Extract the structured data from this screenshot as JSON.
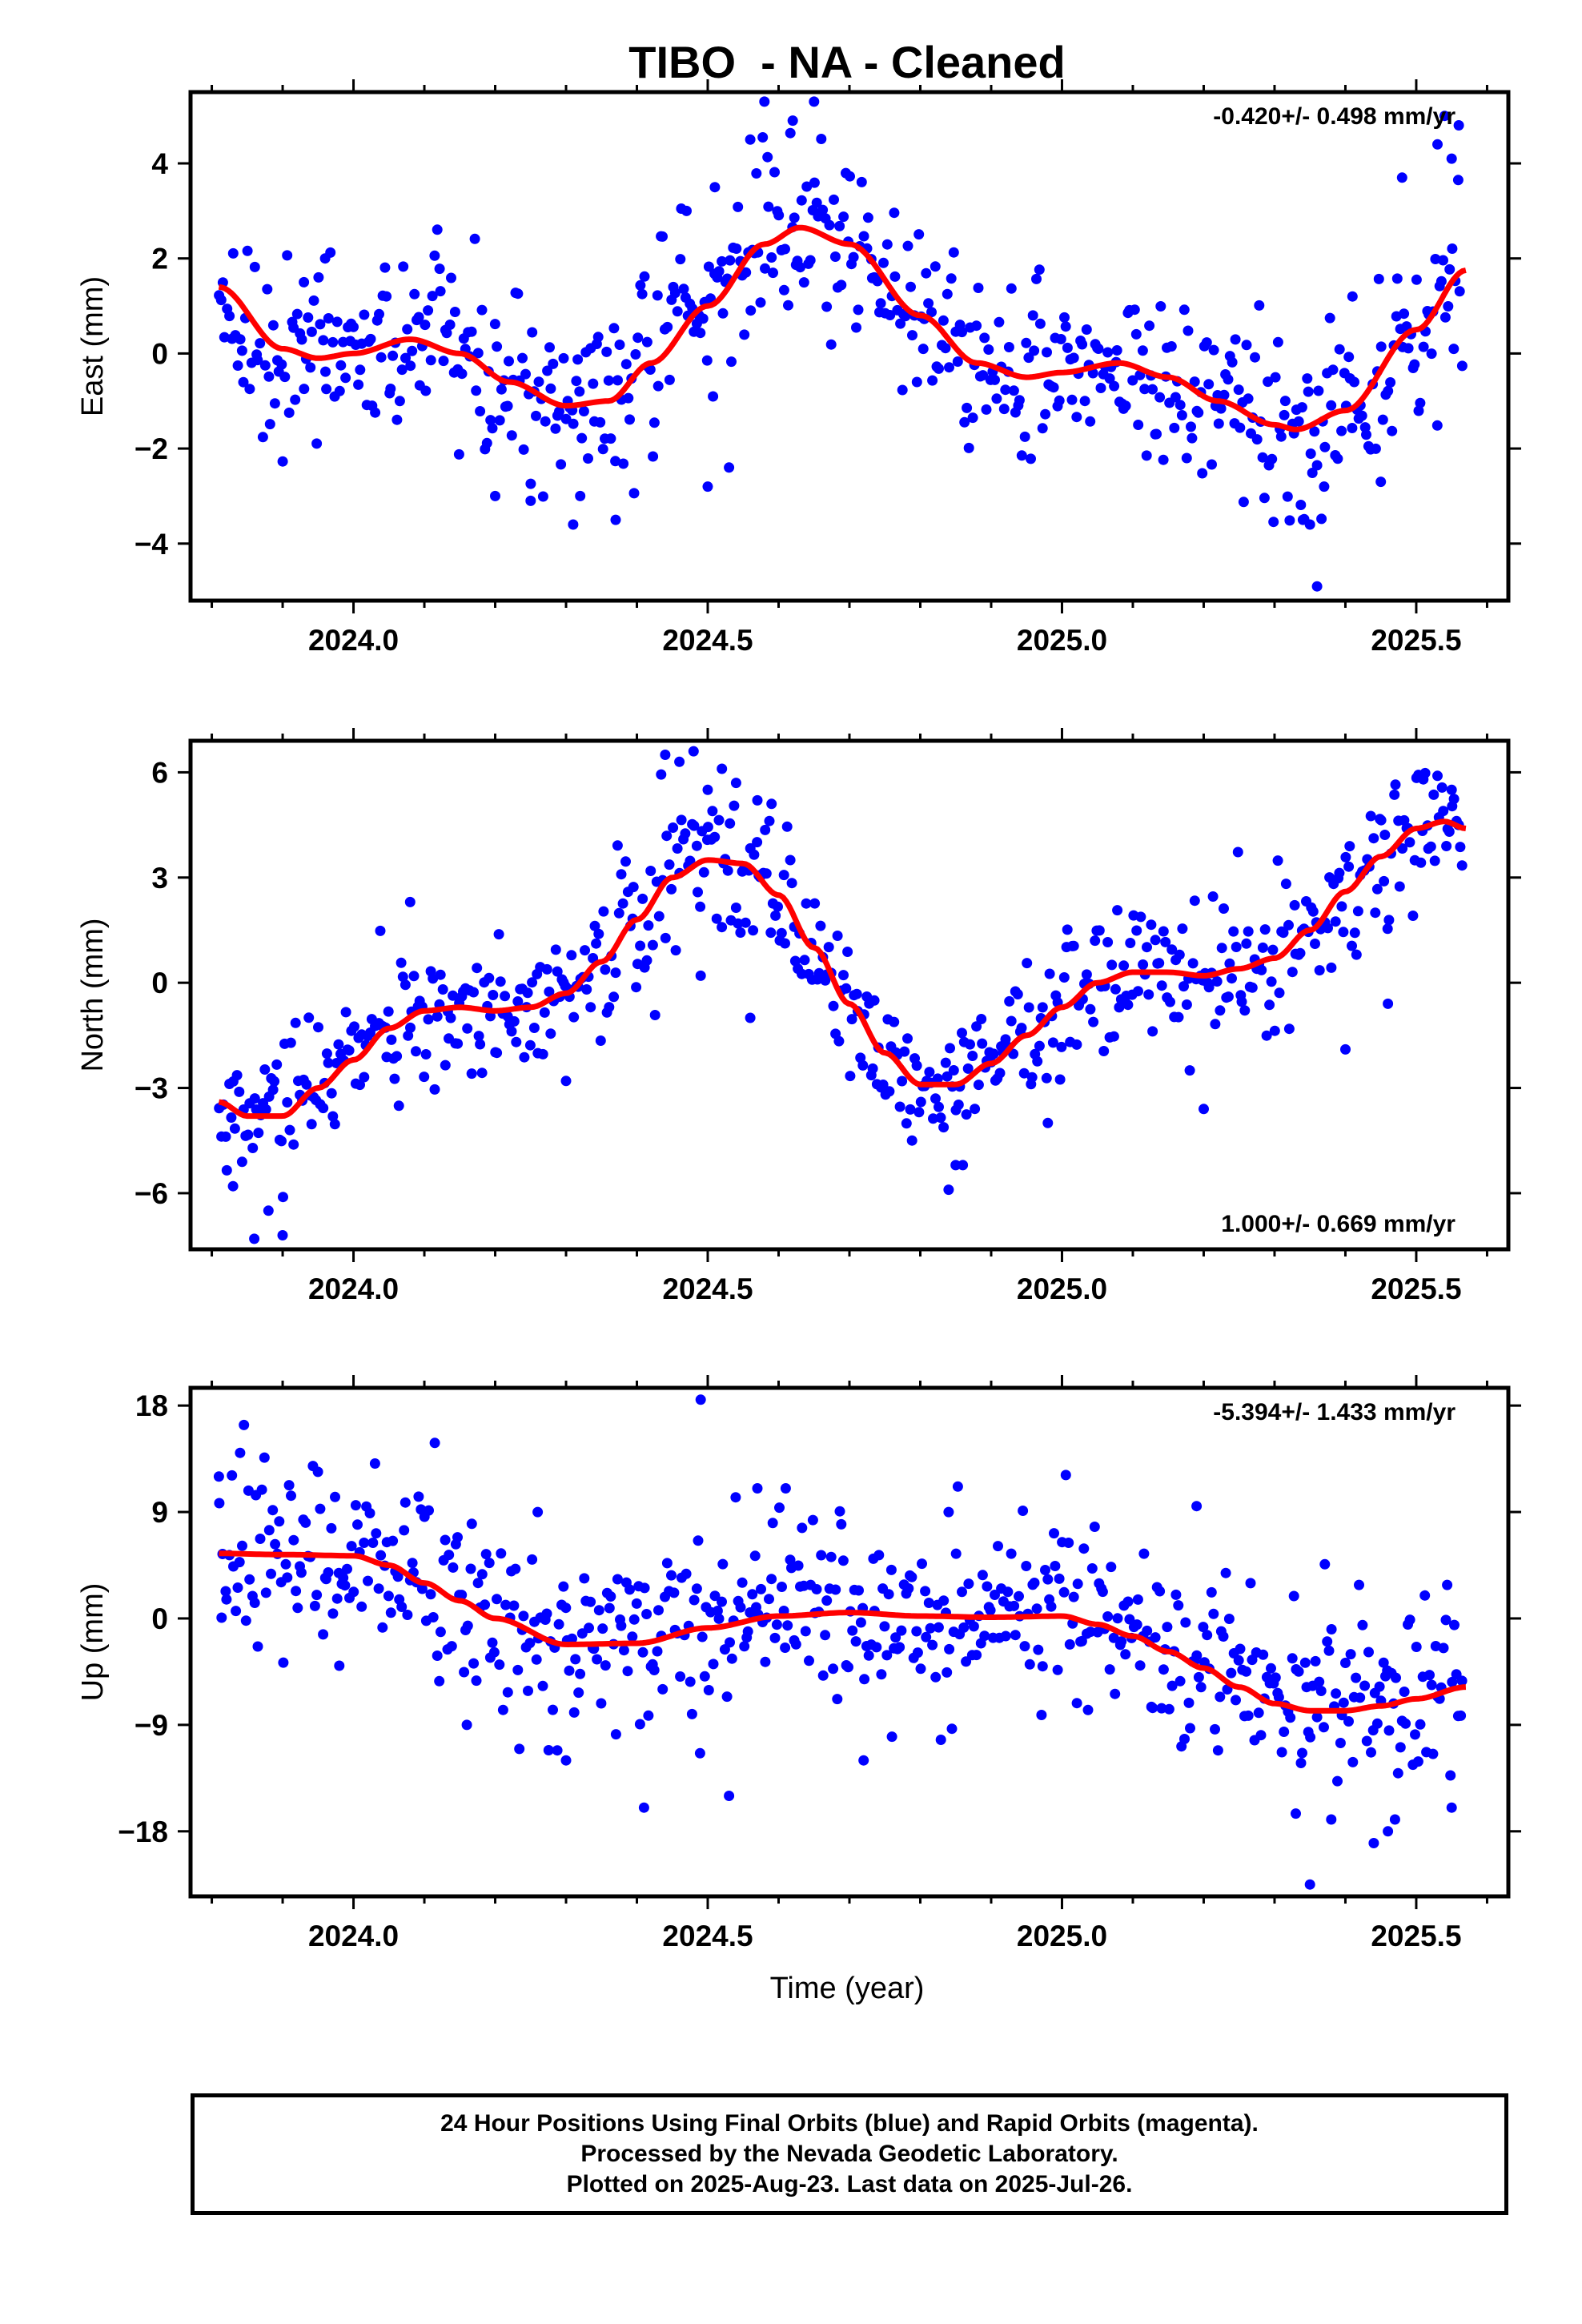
{
  "title": "TIBO  - NA - Cleaned",
  "colors": {
    "final_orbits": "#0000ff",
    "fit_line": "#ff0000",
    "frame": "#000000"
  },
  "xaxis": {
    "label": "Time (year)",
    "ticks": [
      "2024.0",
      "2024.5",
      "2025.0",
      "2025.5"
    ]
  },
  "footer": {
    "line1": "24 Hour Positions Using Final Orbits (blue) and Rapid Orbits (magenta).",
    "line2": "Processed by the Nevada Geodetic Laboratory.",
    "line3": "Plotted on 2025-Aug-23. Last data on 2025-Jul-26."
  },
  "chart_data": [
    {
      "type": "scatter",
      "title": "",
      "ylabel": "East (mm)",
      "rate": "-0.420+/- 0.498 mm/yr",
      "xlim": [
        2023.77,
        2025.63
      ],
      "ylim": [
        -5.2,
        5.5
      ],
      "yticks": [
        -4,
        -2,
        0,
        2,
        4
      ],
      "ytick_labels": [
        "−4",
        "−2",
        "0",
        "2",
        "4"
      ],
      "xticks": [
        2024.0,
        2024.5,
        2025.0,
        2025.5
      ],
      "fit": {
        "x": [
          2023.81,
          2023.9,
          2023.95,
          2024.0,
          2024.08,
          2024.15,
          2024.22,
          2024.3,
          2024.36,
          2024.42,
          2024.5,
          2024.58,
          2024.63,
          2024.7,
          2024.8,
          2024.88,
          2024.95,
          2025.0,
          2025.08,
          2025.15,
          2025.22,
          2025.3,
          2025.33,
          2025.4,
          2025.5,
          2025.57
        ],
        "y": [
          1.4,
          0.1,
          -0.1,
          0.0,
          0.3,
          0.0,
          -0.6,
          -1.1,
          -1.0,
          -0.2,
          1.0,
          2.3,
          2.65,
          2.3,
          0.8,
          -0.2,
          -0.5,
          -0.4,
          -0.2,
          -0.5,
          -1.0,
          -1.5,
          -1.6,
          -1.2,
          0.5,
          1.75
        ]
      },
      "outliers": {
        "x": [
          2024.58,
          2024.62,
          2024.65,
          2024.56,
          2024.47,
          2024.51,
          2025.35,
          2025.36,
          2025.34,
          2025.53,
          2025.54,
          2025.55,
          2025.56,
          2024.31,
          2024.32,
          2024.37,
          2024.2,
          2024.25,
          2024.5,
          2024.53,
          2023.96,
          2023.93,
          2025.37,
          2025.41,
          2025.45,
          2025.48
        ],
        "y": [
          5.3,
          4.9,
          5.3,
          4.5,
          3.0,
          3.5,
          -3.6,
          -4.9,
          -3.5,
          4.4,
          5.0,
          4.1,
          4.8,
          -3.6,
          -3.0,
          -3.5,
          -3.0,
          -3.1,
          -2.8,
          -2.4,
          2.0,
          1.5,
          -2.8,
          1.2,
          -2.7,
          3.7
        ]
      }
    },
    {
      "type": "scatter",
      "title": "",
      "ylabel": "North (mm)",
      "rate": "1.000+/- 0.669 mm/yr",
      "xlim": [
        2023.77,
        2025.63
      ],
      "ylim": [
        -7.6,
        6.9
      ],
      "yticks": [
        -6,
        -3,
        0,
        3,
        6
      ],
      "ytick_labels": [
        "−6",
        "−3",
        "0",
        "3",
        "6"
      ],
      "xticks": [
        2024.0,
        2024.5,
        2025.0,
        2025.5
      ],
      "fit": {
        "x": [
          2023.81,
          2023.85,
          2023.9,
          2023.95,
          2024.0,
          2024.05,
          2024.1,
          2024.15,
          2024.2,
          2024.25,
          2024.3,
          2024.35,
          2024.4,
          2024.45,
          2024.5,
          2024.55,
          2024.6,
          2024.65,
          2024.7,
          2024.75,
          2024.8,
          2024.85,
          2024.9,
          2024.95,
          2025.0,
          2025.05,
          2025.1,
          2025.15,
          2025.2,
          2025.25,
          2025.3,
          2025.35,
          2025.4,
          2025.45,
          2025.5,
          2025.54,
          2025.57
        ],
        "y": [
          -3.4,
          -3.8,
          -3.8,
          -3.0,
          -2.2,
          -1.3,
          -0.8,
          -0.7,
          -0.8,
          -0.7,
          -0.3,
          0.6,
          1.8,
          3.0,
          3.5,
          3.4,
          2.5,
          1.0,
          -0.6,
          -2.0,
          -2.9,
          -2.9,
          -2.3,
          -1.5,
          -0.7,
          0.0,
          0.3,
          0.3,
          0.2,
          0.4,
          0.7,
          1.5,
          2.6,
          3.6,
          4.4,
          4.6,
          4.4
        ]
      },
      "outliers": {
        "x": [
          2023.83,
          2023.86,
          2023.88,
          2023.9,
          2024.44,
          2024.46,
          2024.48,
          2024.5,
          2024.52,
          2024.54,
          2024.57,
          2024.59,
          2024.56,
          2024.85,
          2024.84,
          2024.86,
          2024.98,
          2025.2,
          2025.4,
          2025.46,
          2025.51,
          2025.53,
          2025.55,
          2025.56,
          2024.08,
          2024.3,
          2024.49
        ],
        "y": [
          -5.8,
          -7.3,
          -6.5,
          -7.2,
          6.5,
          6.3,
          6.6,
          5.5,
          6.1,
          5.7,
          5.2,
          5.1,
          -1.0,
          -5.2,
          -5.9,
          -5.2,
          -4.0,
          -3.6,
          -1.9,
          -0.6,
          5.8,
          5.9,
          5.5,
          4.5,
          2.3,
          -2.8,
          0.2
        ]
      }
    },
    {
      "type": "scatter",
      "title": "",
      "ylabel": "Up (mm)",
      "rate": "-5.394+/- 1.433 mm/yr",
      "xlim": [
        2023.77,
        2025.63
      ],
      "ylim": [
        -23.5,
        19.5
      ],
      "yticks": [
        -18,
        -9,
        0,
        9,
        18
      ],
      "ytick_labels": [
        "−18",
        "−9",
        "0",
        "9",
        "18"
      ],
      "xticks": [
        2024.0,
        2024.5,
        2025.0,
        2025.5
      ],
      "fit": {
        "x": [
          2023.81,
          2023.9,
          2024.0,
          2024.05,
          2024.1,
          2024.15,
          2024.2,
          2024.3,
          2024.4,
          2024.5,
          2024.6,
          2024.7,
          2024.8,
          2024.9,
          2025.0,
          2025.05,
          2025.1,
          2025.15,
          2025.2,
          2025.25,
          2025.3,
          2025.35,
          2025.4,
          2025.45,
          2025.5,
          2025.57
        ],
        "y": [
          5.5,
          5.4,
          5.3,
          4.5,
          3.0,
          1.5,
          0.0,
          -2.2,
          -2.1,
          -0.8,
          0.2,
          0.5,
          0.2,
          0.1,
          0.2,
          -0.5,
          -1.5,
          -2.8,
          -4.2,
          -5.8,
          -7.2,
          -7.8,
          -7.8,
          -7.4,
          -6.8,
          -5.8
        ]
      },
      "outliers": {
        "x": [
          2024.49,
          2024.41,
          2024.53,
          2025.35,
          2025.33,
          2025.38,
          2025.44,
          2025.46,
          2025.47,
          2024.3,
          2023.84,
          2023.81,
          2024.26,
          2024.72,
          2024.57,
          2025.19,
          2024.84,
          2024.16,
          2023.98,
          2024.61,
          2024.76,
          2025.55
        ],
        "y": [
          18.5,
          -16.0,
          -15.0,
          -22.5,
          -16.5,
          -17.0,
          -19.0,
          -18.0,
          -17.0,
          -12.0,
          14.0,
          12.0,
          9.0,
          -12.0,
          11.0,
          9.5,
          9.0,
          -9.0,
          -4.0,
          11.0,
          -10.0,
          -16.0
        ]
      }
    }
  ]
}
